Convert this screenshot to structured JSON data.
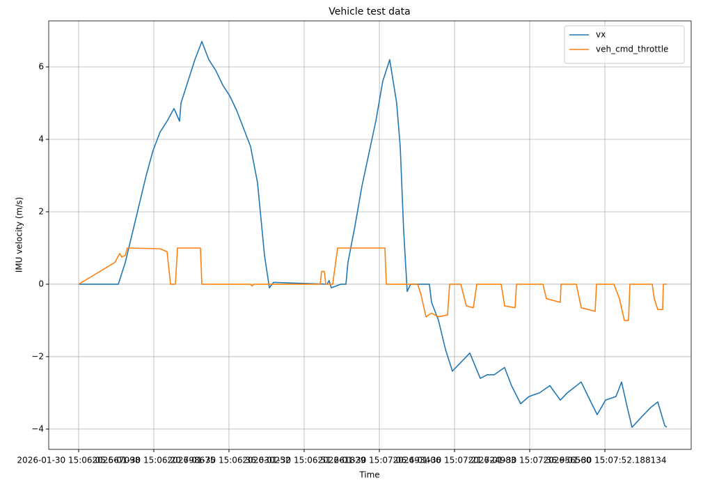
{
  "chart_data": {
    "type": "line",
    "title": "Vehicle test data",
    "x_label": "Time",
    "y_label": "IMU velocity (m/s)",
    "xlim": [
      -6.06,
      124.1
    ],
    "ylim": [
      -4.56,
      7.27
    ],
    "xticks": [
      {
        "value": 0,
        "label": "2026-01-30 15:06:05.567098"
      },
      {
        "value": 15.23,
        "label": "2026-01-30 15:06:20.798675"
      },
      {
        "value": 30.46,
        "label": "2026-01-30 15:06:36.030252"
      },
      {
        "value": 45.69,
        "label": "2026-01-30 15:06:51.261829"
      },
      {
        "value": 60.93,
        "label": "2026-01-30 15:07:06.493406"
      },
      {
        "value": 76.16,
        "label": "2026-01-30 15:07:21.724983"
      },
      {
        "value": 91.39,
        "label": "2026-01-30 15:07:36.956560"
      },
      {
        "value": 106.62,
        "label": "2026-01-30 15:07:52.188134"
      }
    ],
    "yticks": [
      {
        "value": -4,
        "label": "−4"
      },
      {
        "value": -2,
        "label": "−2"
      },
      0,
      2,
      4,
      6
    ],
    "grid": true,
    "legend": "upper right",
    "series": [
      {
        "name": "vx",
        "color": "#1f77b4",
        "x": [
          0,
          8.04,
          9.45,
          10.86,
          12.27,
          13.68,
          15.09,
          16.5,
          17.91,
          19.32,
          20.45,
          20.73,
          22.14,
          23.55,
          24.96,
          26.37,
          27.78,
          29.19,
          30.6,
          32.01,
          33.42,
          34.83,
          36.24,
          37.65,
          38.64,
          39.48,
          50.34,
          50.76,
          51.19,
          53.16,
          54.15,
          54.57,
          55.98,
          57.39,
          58.8,
          60.21,
          61.62,
          63.03,
          64.44,
          65.15,
          65.85,
          66.56,
          67.27,
          71.07,
          71.5,
          72.91,
          74.32,
          75.73,
          77.14,
          79.25,
          81.37,
          82.78,
          84.19,
          86.3,
          87.71,
          89.55,
          91.24,
          93.36,
          95.47,
          97.59,
          99.0,
          101.82,
          103.23,
          105.06,
          106.75,
          108.87,
          110.0,
          110.99,
          112.11,
          113.81,
          115.92,
          117.33,
          118.74,
          119.16
        ],
        "values": [
          0,
          0,
          0.6,
          1.4,
          2.2,
          3.0,
          3.7,
          4.2,
          4.5,
          4.85,
          4.5,
          5.0,
          5.6,
          6.2,
          6.7,
          6.2,
          5.9,
          5.5,
          5.2,
          4.8,
          4.3,
          3.8,
          2.8,
          0.8,
          -0.1,
          0.05,
          0,
          0.1,
          -0.1,
          0,
          0,
          0.6,
          1.6,
          2.7,
          3.6,
          4.5,
          5.6,
          6.2,
          5.0,
          3.8,
          1.5,
          -0.2,
          0,
          0,
          -0.5,
          -1.0,
          -1.8,
          -2.4,
          -2.2,
          -1.9,
          -2.6,
          -2.5,
          -2.5,
          -2.3,
          -2.8,
          -3.3,
          -3.1,
          -3.0,
          -2.8,
          -3.2,
          -3.0,
          -2.7,
          -3.1,
          -3.6,
          -3.2,
          -3.1,
          -2.7,
          -3.3,
          -3.95,
          -3.7,
          -3.4,
          -3.25,
          -3.9,
          -3.95
        ]
      },
      {
        "name": "veh_cmd_throttle",
        "color": "#ff7f0e",
        "x": [
          0,
          7.33,
          8.32,
          8.74,
          9.45,
          9.87,
          16.5,
          17.91,
          18.62,
          19.6,
          20.03,
          24.68,
          24.96,
          34.83,
          35.11,
          35.54,
          48.94,
          49.22,
          49.78,
          50.06,
          51.47,
          52.46,
          62.05,
          62.33,
          68.68,
          69.38,
          70.37,
          71.5,
          72.91,
          74.74,
          75.17,
          77.42,
          78.55,
          79.96,
          80.67,
          85.6,
          86.31,
          88.42,
          88.71,
          94.06,
          94.77,
          97.59,
          97.73,
          100.83,
          101.82,
          104.64,
          104.92,
          108.45,
          109.57,
          110.56,
          111.41,
          111.69,
          116.2,
          116.63,
          117.33,
          118.32,
          118.46,
          119.16
        ],
        "values": [
          0,
          0.6,
          0.85,
          0.75,
          0.8,
          1.0,
          0.98,
          0.9,
          0,
          0,
          1.0,
          1.0,
          0,
          0,
          -0.05,
          0,
          0,
          0.35,
          0.35,
          0,
          0,
          1.0,
          1.0,
          0,
          0,
          -0.3,
          -0.9,
          -0.8,
          -0.9,
          -0.85,
          0,
          0,
          -0.6,
          -0.65,
          0,
          0,
          -0.6,
          -0.65,
          0,
          0,
          -0.4,
          -0.5,
          0,
          0,
          -0.65,
          -0.75,
          0,
          0,
          -0.4,
          -1.0,
          -1.0,
          0,
          0,
          -0.4,
          -0.7,
          -0.7,
          0,
          0
        ]
      }
    ]
  }
}
